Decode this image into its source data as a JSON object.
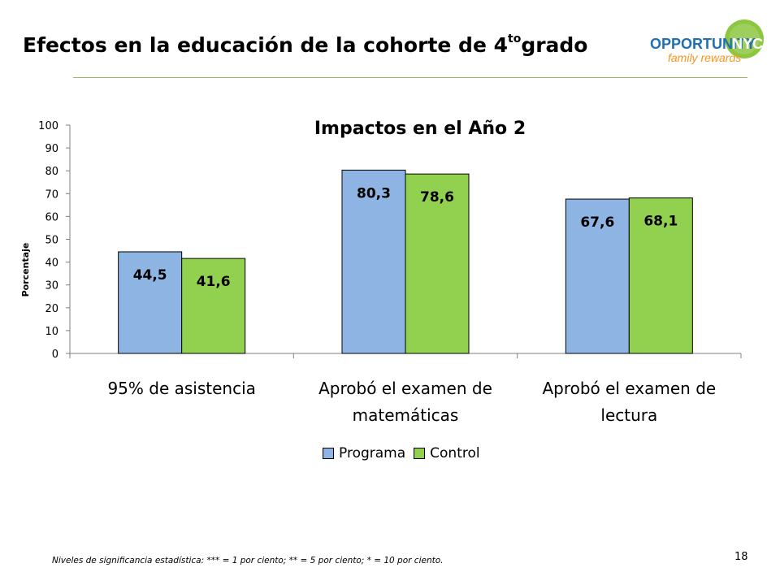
{
  "slide": {
    "title_main": "Efectos en la educación de la cohorte de 4",
    "title_sup": "to",
    "title_end": "grado",
    "footnote": "Niveles de significancia estadística: *** = 1 por ciento; ** = 5 por ciento; * = 10 por ciento.",
    "page_number": "18"
  },
  "logo": {
    "word1": "OPPORTUNITY",
    "word2": "NYC",
    "tagline": "family rewards",
    "colors": {
      "blue": "#1f6fb4",
      "green": "#8dc63f",
      "orange": "#f7941d"
    }
  },
  "chart_data": {
    "type": "bar",
    "title": "Impactos en el Año 2",
    "xlabel": "",
    "ylabel": "Porcentaje",
    "ylim": [
      0,
      100
    ],
    "yticks": [
      "0",
      "10",
      "20",
      "30",
      "40",
      "50",
      "60",
      "70",
      "80",
      "90",
      "100"
    ],
    "categories": [
      [
        "95% de asistencia"
      ],
      [
        "Aprobó el examen de",
        "matemáticas"
      ],
      [
        "Aprobó el examen de",
        "lectura"
      ]
    ],
    "series": [
      {
        "name": "Programa",
        "color": "#8db4e2",
        "values": [
          44.5,
          80.3,
          67.6
        ],
        "labels": [
          "44,5",
          "80,3",
          "67,6"
        ]
      },
      {
        "name": "Control",
        "color": "#92d050",
        "values": [
          41.6,
          78.6,
          68.1
        ],
        "labels": [
          "41,6",
          "78,6",
          "68,1"
        ]
      }
    ],
    "legend": "bottom",
    "grid": false
  }
}
